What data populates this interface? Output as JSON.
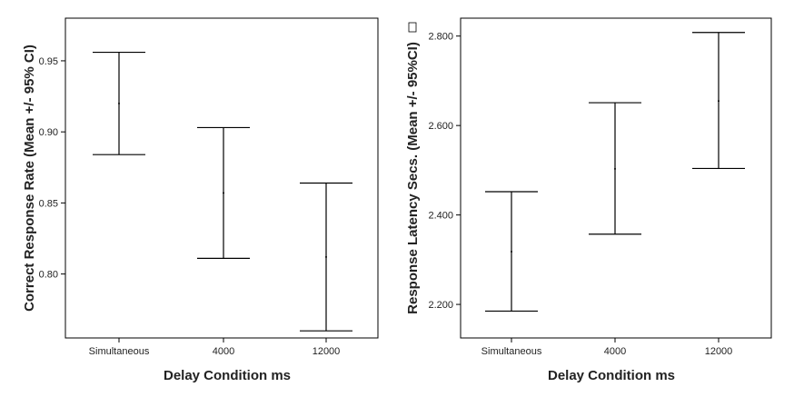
{
  "chart_data": [
    {
      "type": "errorbar",
      "xlabel": "Delay Condition ms",
      "ylabel": "Correct Response Rate (Mean +/- 95% CI)",
      "categories": [
        "Simultaneous",
        "4000",
        "12000"
      ],
      "ylim": [
        0.755,
        0.98
      ],
      "yticks": [
        0.8,
        0.85,
        0.9,
        0.95
      ],
      "ytick_labels": [
        "0.80",
        "0.85",
        "0.90",
        "0.95"
      ],
      "grid": false,
      "series": [
        {
          "mean": [
            0.92,
            0.857,
            0.812
          ],
          "lower": [
            0.884,
            0.811,
            0.76
          ],
          "upper": [
            0.956,
            0.903,
            0.864
          ]
        }
      ]
    },
    {
      "type": "errorbar",
      "xlabel": "Delay Condition ms",
      "ylabel": "Response Latency Secs. (Mean +/- 95%CI)",
      "categories": [
        "Simultaneous",
        "4000",
        "12000"
      ],
      "ylim": [
        2.125,
        2.84
      ],
      "yticks": [
        2.2,
        2.4,
        2.6,
        2.8
      ],
      "ytick_labels": [
        "2.200",
        "2.400",
        "2.600",
        "2.800"
      ],
      "grid": false,
      "series": [
        {
          "mean": [
            2.318,
            2.503,
            2.655
          ],
          "lower": [
            2.185,
            2.357,
            2.504
          ],
          "upper": [
            2.452,
            2.651,
            2.808
          ]
        }
      ]
    }
  ]
}
